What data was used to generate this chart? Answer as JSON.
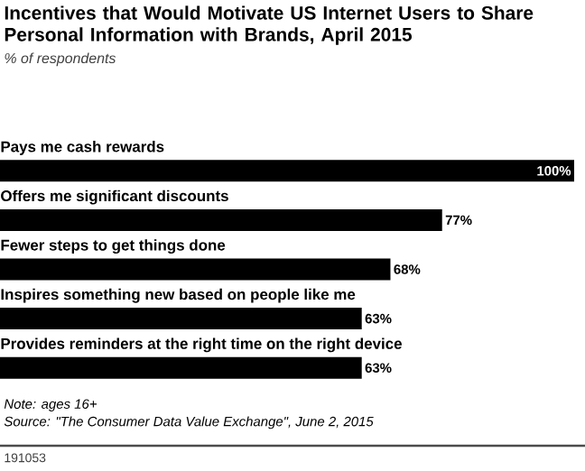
{
  "chart_data": {
    "type": "bar",
    "orientation": "horizontal",
    "title": "Incentives that Would Motivate US Internet Users to Share Personal Information with Brands, April 2015",
    "subtitle": "% of respondents",
    "categories": [
      "Pays me cash rewards",
      "Offers me significant discounts",
      "Fewer steps to get things done",
      "Inspires something new based on people like me",
      "Provides reminders at the right time on the right device"
    ],
    "values": [
      100,
      77,
      68,
      63,
      63
    ],
    "value_labels": [
      "100%",
      "77%",
      "68%",
      "63%",
      "63%"
    ],
    "color": "#000000",
    "xlim": [
      0,
      100
    ],
    "annotations": [
      "Note: ages 16+",
      "Source: \"The Consumer Data Value Exchange\", June 2, 2015",
      "191053"
    ]
  }
}
